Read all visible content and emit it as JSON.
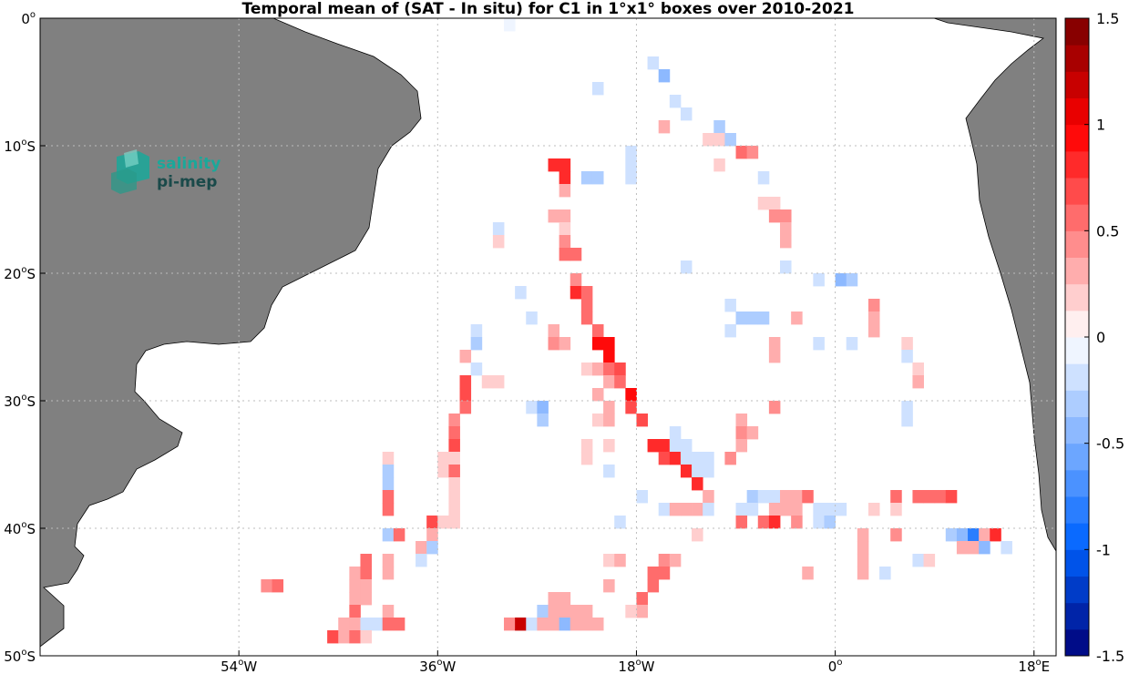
{
  "title": "Temporal mean of (SAT - In situ) for C1 in 1°x1° boxes over 2010-2021",
  "logo": {
    "line1": "salinity",
    "line2": "pi-mep",
    "color": "#1aa89a"
  },
  "map": {
    "lon_range": [
      -72,
      20
    ],
    "lat_range": [
      -50,
      0
    ],
    "x_ticks": [
      {
        "lon": -54,
        "num": "54",
        "hem": "W"
      },
      {
        "lon": -36,
        "num": "36",
        "hem": "W"
      },
      {
        "lon": -18,
        "num": "18",
        "hem": "W"
      },
      {
        "lon": 0,
        "num": "0",
        "hem": ""
      },
      {
        "lon": 18,
        "num": "18",
        "hem": "E"
      }
    ],
    "y_ticks": [
      {
        "lat": 0,
        "num": "0",
        "hem": ""
      },
      {
        "lat": -10,
        "num": "10",
        "hem": "S"
      },
      {
        "lat": -20,
        "num": "20",
        "hem": "S"
      },
      {
        "lat": -30,
        "num": "30",
        "hem": "S"
      },
      {
        "lat": -40,
        "num": "40",
        "hem": "S"
      },
      {
        "lat": -50,
        "num": "50",
        "hem": "S"
      }
    ],
    "grid": true,
    "land_color": "#808080"
  },
  "colorbar": {
    "range": [
      -1.5,
      1.5
    ],
    "ticks": [
      {
        "v": 1.5,
        "label": "1.5"
      },
      {
        "v": 1,
        "label": "1"
      },
      {
        "v": 0.5,
        "label": "0.5"
      },
      {
        "v": 0,
        "label": "0"
      },
      {
        "v": -0.5,
        "label": "-0.5"
      },
      {
        "v": -1,
        "label": "-1"
      },
      {
        "v": -1.5,
        "label": "-1.5"
      }
    ]
  },
  "chart_data": {
    "type": "heatmap",
    "title": "Temporal mean of (SAT - In situ) for C1 in 1°x1° boxes over 2010-2021",
    "cells": [
      [
        -30,
        0,
        -0.1
      ],
      [
        -17,
        -3,
        -0.2
      ],
      [
        -16,
        -4,
        -0.5
      ],
      [
        -22,
        -5,
        -0.15
      ],
      [
        -15,
        -6,
        -0.15
      ],
      [
        -14,
        -7,
        -0.15
      ],
      [
        -16,
        -8,
        0.35
      ],
      [
        -11,
        -8,
        -0.3
      ],
      [
        -12,
        -9,
        0.2
      ],
      [
        -11,
        -9,
        0.2
      ],
      [
        -10,
        -9,
        -0.3
      ],
      [
        -9,
        -10,
        0.5
      ],
      [
        -8,
        -10,
        0.45
      ],
      [
        -19,
        -10,
        -0.15
      ],
      [
        -26,
        -11,
        0.8
      ],
      [
        -25,
        -11,
        0.8
      ],
      [
        -19,
        -11,
        -0.15
      ],
      [
        -11,
        -11,
        0.2
      ],
      [
        -25,
        -12,
        0.8
      ],
      [
        -23,
        -12,
        -0.3
      ],
      [
        -22,
        -12,
        -0.3
      ],
      [
        -19,
        -12,
        -0.15
      ],
      [
        -7,
        -12,
        -0.15
      ],
      [
        -25,
        -13,
        0.35
      ],
      [
        -7,
        -14,
        0.2
      ],
      [
        -6,
        -14,
        0.2
      ],
      [
        -26,
        -15,
        0.25
      ],
      [
        -25,
        -15,
        0.25
      ],
      [
        -5,
        -15,
        0.4
      ],
      [
        -6,
        -15,
        0.4
      ],
      [
        -31,
        -16,
        -0.15
      ],
      [
        -25,
        -16,
        0.2
      ],
      [
        -5,
        -16,
        0.25
      ],
      [
        -31,
        -17,
        0.2
      ],
      [
        -25,
        -17,
        0.45
      ],
      [
        -5,
        -17,
        0.25
      ],
      [
        -25,
        -18,
        0.5
      ],
      [
        -24,
        -18,
        0.5
      ],
      [
        -14,
        -19,
        -0.2
      ],
      [
        -5,
        -19,
        -0.15
      ],
      [
        -24,
        -20,
        0.4
      ],
      [
        -2,
        -20,
        -0.15
      ],
      [
        0,
        -20,
        -0.5
      ],
      [
        1,
        -20,
        -0.3
      ],
      [
        -29,
        -21,
        -0.15
      ],
      [
        -24,
        -21,
        0.85
      ],
      [
        -23,
        -21,
        0.6
      ],
      [
        -10,
        -22,
        -0.15
      ],
      [
        3,
        -22,
        0.4
      ],
      [
        -23,
        -22,
        0.6
      ],
      [
        -28,
        -23,
        -0.15
      ],
      [
        -23,
        -23,
        0.5
      ],
      [
        -9,
        -23,
        -0.3
      ],
      [
        -8,
        -23,
        -0.3
      ],
      [
        -7,
        -23,
        -0.3
      ],
      [
        -4,
        -23,
        0.3
      ],
      [
        3,
        -23,
        0.35
      ],
      [
        -33,
        -24,
        -0.15
      ],
      [
        -26,
        -24,
        0.3
      ],
      [
        -22,
        -24,
        0.6
      ],
      [
        -10,
        -24,
        -0.15
      ],
      [
        3,
        -24,
        0.3
      ],
      [
        -33,
        -25,
        -0.3
      ],
      [
        -26,
        -25,
        0.4
      ],
      [
        -25,
        -25,
        0.35
      ],
      [
        -22,
        -25,
        0.95
      ],
      [
        -21,
        -25,
        0.95
      ],
      [
        -6,
        -25,
        0.3
      ],
      [
        -2,
        -25,
        -0.15
      ],
      [
        1,
        -25,
        -0.15
      ],
      [
        6,
        -25,
        0.2
      ],
      [
        -34,
        -26,
        0.3
      ],
      [
        -21,
        -26,
        0.9
      ],
      [
        -6,
        -26,
        0.25
      ],
      [
        6,
        -26,
        -0.15
      ],
      [
        -33,
        -27,
        -0.15
      ],
      [
        -23,
        -27,
        0.2
      ],
      [
        -22,
        -27,
        0.25
      ],
      [
        -21,
        -27,
        0.55
      ],
      [
        -20,
        -27,
        0.7
      ],
      [
        7,
        -27,
        0.2
      ],
      [
        -34,
        -28,
        0.65
      ],
      [
        -32,
        -28,
        0.2
      ],
      [
        -31,
        -28,
        0.2
      ],
      [
        -21,
        -28,
        0.25
      ],
      [
        -20,
        -28,
        0.6
      ],
      [
        7,
        -28,
        0.25
      ],
      [
        -34,
        -29,
        0.65
      ],
      [
        -22,
        -29,
        0.25
      ],
      [
        -19,
        -29,
        0.9
      ],
      [
        -34,
        -30,
        0.6
      ],
      [
        -28,
        -30,
        -0.2
      ],
      [
        -27,
        -30,
        -0.4
      ],
      [
        -21,
        -30,
        0.25
      ],
      [
        -19,
        -30,
        0.7
      ],
      [
        -6,
        -30,
        0.4
      ],
      [
        6,
        -30,
        -0.15
      ],
      [
        -35,
        -31,
        0.45
      ],
      [
        -27,
        -31,
        -0.3
      ],
      [
        -22,
        -31,
        0.2
      ],
      [
        -21,
        -31,
        0.25
      ],
      [
        -18,
        -31,
        0.7
      ],
      [
        -9,
        -31,
        0.35
      ],
      [
        6,
        -31,
        -0.15
      ],
      [
        -35,
        -32,
        0.55
      ],
      [
        -15,
        -32,
        -0.15
      ],
      [
        -9,
        -32,
        0.4
      ],
      [
        -8,
        -32,
        0.35
      ],
      [
        -35,
        -33,
        0.7
      ],
      [
        -23,
        -33,
        0.2
      ],
      [
        -21,
        -33,
        0.2
      ],
      [
        -17,
        -33,
        0.8
      ],
      [
        -16,
        -33,
        0.8
      ],
      [
        -15,
        -33,
        -0.15
      ],
      [
        -14,
        -33,
        -0.15
      ],
      [
        -9,
        -33,
        0.25
      ],
      [
        -41,
        -34,
        0.2
      ],
      [
        -36,
        -34,
        0.2
      ],
      [
        -35,
        -34,
        0.2
      ],
      [
        -23,
        -34,
        0.2
      ],
      [
        -16,
        -34,
        0.7
      ],
      [
        -15,
        -34,
        0.8
      ],
      [
        -14,
        -34,
        -0.15
      ],
      [
        -13,
        -34,
        -0.15
      ],
      [
        -12,
        -34,
        -0.15
      ],
      [
        -10,
        -34,
        0.4
      ],
      [
        -41,
        -35,
        -0.35
      ],
      [
        -36,
        -35,
        0.2
      ],
      [
        -35,
        -35,
        0.5
      ],
      [
        -21,
        -35,
        -0.15
      ],
      [
        -14,
        -35,
        0.8
      ],
      [
        -13,
        -35,
        -0.15
      ],
      [
        -12,
        -35,
        -0.15
      ],
      [
        -41,
        -36,
        -0.35
      ],
      [
        -35,
        -36,
        0.2
      ],
      [
        -13,
        -36,
        0.75
      ],
      [
        -41,
        -37,
        0.55
      ],
      [
        -35,
        -37,
        0.2
      ],
      [
        -18,
        -37,
        -0.15
      ],
      [
        -12,
        -37,
        0.35
      ],
      [
        -8,
        -37,
        -0.3
      ],
      [
        -7,
        -37,
        -0.15
      ],
      [
        -6,
        -37,
        -0.15
      ],
      [
        -5,
        -37,
        0.3
      ],
      [
        -4,
        -37,
        0.25
      ],
      [
        -3,
        -37,
        0.6
      ],
      [
        5,
        -37,
        0.6
      ],
      [
        7,
        -37,
        0.5
      ],
      [
        8,
        -37,
        0.5
      ],
      [
        9,
        -37,
        0.55
      ],
      [
        10,
        -37,
        0.7
      ],
      [
        -41,
        -38,
        0.6
      ],
      [
        -35,
        -38,
        0.2
      ],
      [
        -16,
        -38,
        -0.15
      ],
      [
        -15,
        -38,
        0.25
      ],
      [
        -14,
        -38,
        0.25
      ],
      [
        -13,
        -38,
        0.25
      ],
      [
        -12,
        -38,
        -0.15
      ],
      [
        -9,
        -38,
        -0.15
      ],
      [
        -8,
        -38,
        -0.15
      ],
      [
        -6,
        -38,
        0.25
      ],
      [
        -5,
        -38,
        0.25
      ],
      [
        -4,
        -38,
        0.35
      ],
      [
        -2,
        -38,
        -0.15
      ],
      [
        -1,
        -38,
        -0.15
      ],
      [
        0,
        -38,
        -0.15
      ],
      [
        3,
        -38,
        0.2
      ],
      [
        5,
        -38,
        0.2
      ],
      [
        -37,
        -39,
        0.7
      ],
      [
        -36,
        -39,
        0.2
      ],
      [
        -35,
        -39,
        0.2
      ],
      [
        -20,
        -39,
        -0.15
      ],
      [
        -9,
        -39,
        0.5
      ],
      [
        -7,
        -39,
        0.6
      ],
      [
        -6,
        -39,
        0.8
      ],
      [
        -4,
        -39,
        0.4
      ],
      [
        -2,
        -39,
        -0.15
      ],
      [
        -1,
        -39,
        -0.3
      ],
      [
        -41,
        -40,
        -0.35
      ],
      [
        -40,
        -40,
        0.5
      ],
      [
        -37,
        -40,
        0.25
      ],
      [
        -13,
        -40,
        0.2
      ],
      [
        2,
        -40,
        0.3
      ],
      [
        5,
        -40,
        0.4
      ],
      [
        10,
        -40,
        -0.35
      ],
      [
        11,
        -40,
        -0.4
      ],
      [
        12,
        -40,
        -0.8
      ],
      [
        13,
        -40,
        0.3
      ],
      [
        14,
        -40,
        0.85
      ],
      [
        -38,
        -41,
        0.25
      ],
      [
        -37,
        -41,
        -0.3
      ],
      [
        2,
        -41,
        0.3
      ],
      [
        11,
        -41,
        0.35
      ],
      [
        12,
        -41,
        0.25
      ],
      [
        13,
        -41,
        -0.4
      ],
      [
        15,
        -41,
        -0.2
      ],
      [
        -38,
        -42,
        -0.15
      ],
      [
        -43,
        -42,
        0.6
      ],
      [
        -41,
        -42,
        0.3
      ],
      [
        -21,
        -42,
        0.2
      ],
      [
        -20,
        -42,
        0.3
      ],
      [
        -16,
        -42,
        0.4
      ],
      [
        -15,
        -42,
        0.3
      ],
      [
        2,
        -42,
        0.3
      ],
      [
        7,
        -42,
        -0.2
      ],
      [
        8,
        -42,
        0.2
      ],
      [
        -44,
        -43,
        0.3
      ],
      [
        -43,
        -43,
        0.55
      ],
      [
        -41,
        -43,
        0.3
      ],
      [
        -17,
        -43,
        0.6
      ],
      [
        -16,
        -43,
        0.6
      ],
      [
        -3,
        -43,
        0.25
      ],
      [
        2,
        -43,
        0.3
      ],
      [
        4,
        -43,
        -0.2
      ],
      [
        -52,
        -44,
        0.4
      ],
      [
        -51,
        -44,
        0.6
      ],
      [
        -44,
        -44,
        0.3
      ],
      [
        -43,
        -44,
        0.3
      ],
      [
        -21,
        -44,
        0.3
      ],
      [
        -17,
        -44,
        0.5
      ],
      [
        -44,
        -45,
        0.3
      ],
      [
        -43,
        -45,
        0.3
      ],
      [
        -26,
        -45,
        0.3
      ],
      [
        -25,
        -45,
        0.3
      ],
      [
        -18,
        -45,
        0.6
      ],
      [
        -44,
        -46,
        0.6
      ],
      [
        -41,
        -46,
        0.3
      ],
      [
        -27,
        -46,
        -0.3
      ],
      [
        -26,
        -46,
        0.3
      ],
      [
        -25,
        -46,
        0.3
      ],
      [
        -24,
        -46,
        0.25
      ],
      [
        -23,
        -46,
        0.25
      ],
      [
        -18,
        -46,
        0.25
      ],
      [
        -19,
        -46,
        0.2
      ],
      [
        -45,
        -47,
        0.3
      ],
      [
        -44,
        -47,
        0.3
      ],
      [
        -43,
        -47,
        -0.15
      ],
      [
        -42,
        -47,
        -0.15
      ],
      [
        -41,
        -47,
        0.5
      ],
      [
        -40,
        -47,
        0.5
      ],
      [
        -30,
        -47,
        0.4
      ],
      [
        -29,
        -47,
        1.2
      ],
      [
        -28,
        -47,
        -0.15
      ],
      [
        -27,
        -47,
        0.3
      ],
      [
        -26,
        -47,
        0.3
      ],
      [
        -25,
        -47,
        -0.4
      ],
      [
        -24,
        -47,
        0.3
      ],
      [
        -23,
        -47,
        0.3
      ],
      [
        -22,
        -47,
        0.3
      ],
      [
        -46,
        -48,
        0.7
      ],
      [
        -45,
        -48,
        0.3
      ],
      [
        -44,
        -48,
        0.6
      ],
      [
        -43,
        -48,
        0.2
      ]
    ]
  }
}
